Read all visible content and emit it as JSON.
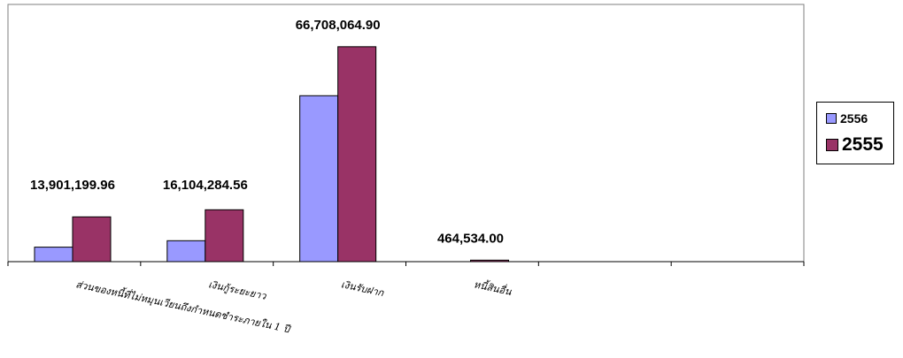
{
  "chart_data": {
    "type": "bar",
    "title": "",
    "xlabel": "",
    "ylabel": "",
    "categories": [
      "ส่วนของหนี้ที่ไม่หมุนเวียนถึงกำหนดชำระภายใน 1 ปี",
      "เงินกู้ระยะยาว",
      "เงินรับฝาก",
      "หนี้สินอื่น",
      "",
      ""
    ],
    "series": [
      {
        "name": "2556",
        "color": "#9999ff",
        "values": [
          4500000,
          6500000,
          51500000,
          null,
          null,
          null
        ]
      },
      {
        "name": "2555",
        "color": "#993366",
        "values": [
          13901199.96,
          16104284.56,
          66708064.9,
          464534.0,
          null,
          null
        ]
      }
    ],
    "data_labels": [
      "13,901,199.96",
      "16,104,284.56",
      "66,708,064.90",
      "464,534.00"
    ],
    "ylim": [
      0,
      70000000
    ],
    "grid": false,
    "legend_position": "right"
  }
}
